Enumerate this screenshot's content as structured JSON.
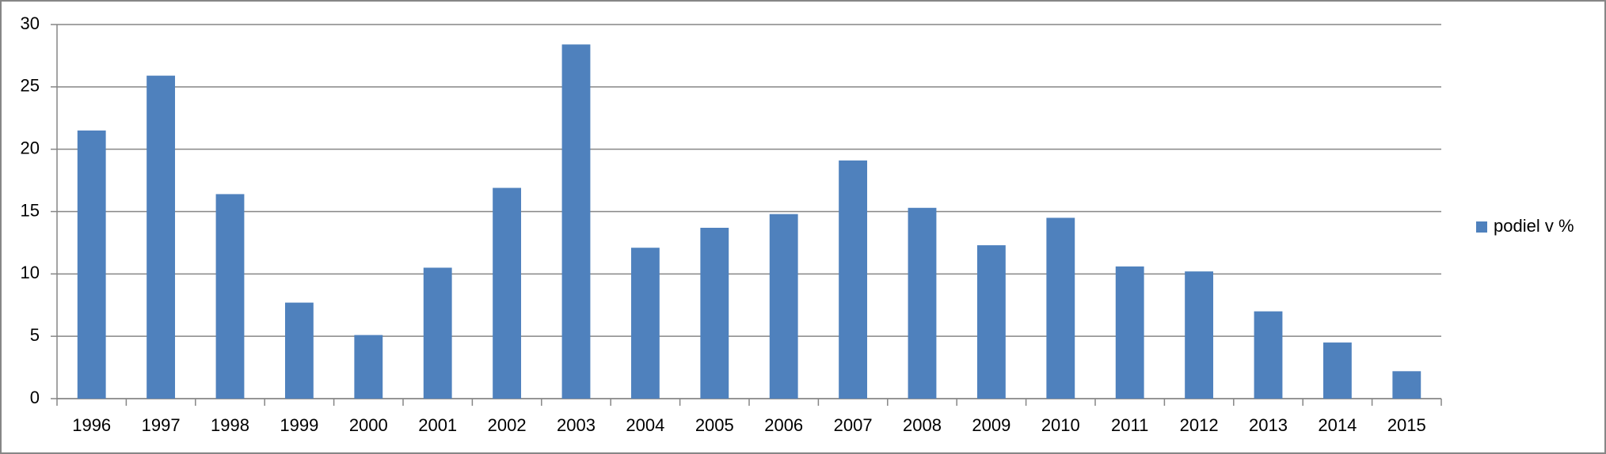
{
  "chart_data": {
    "type": "bar",
    "categories": [
      "1996",
      "1997",
      "1998",
      "1999",
      "2000",
      "2001",
      "2002",
      "2003",
      "2004",
      "2005",
      "2006",
      "2007",
      "2008",
      "2009",
      "2010",
      "2011",
      "2012",
      "2013",
      "2014",
      "2015"
    ],
    "series": [
      {
        "name": "podiel v %",
        "color": "#4f81bd",
        "values": [
          21.5,
          25.9,
          16.4,
          7.7,
          5.1,
          10.5,
          16.9,
          28.4,
          12.1,
          13.7,
          14.8,
          19.1,
          15.3,
          12.3,
          14.5,
          10.6,
          10.2,
          7.0,
          4.5,
          2.2
        ]
      }
    ],
    "ylim": [
      0,
      30
    ],
    "yticks": [
      0,
      5,
      10,
      15,
      20,
      25,
      30
    ],
    "grid": true,
    "legend": "right"
  }
}
